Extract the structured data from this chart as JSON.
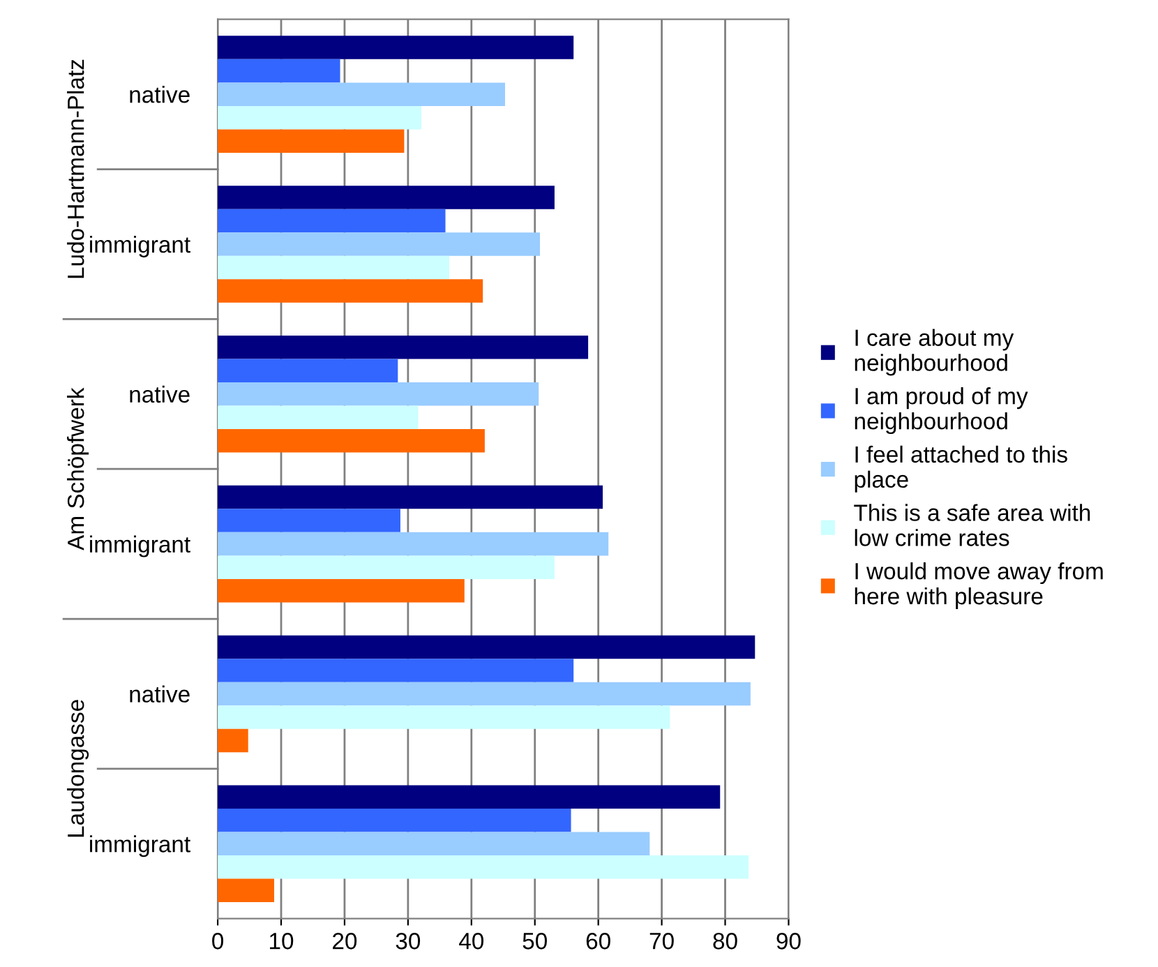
{
  "chart_data": {
    "type": "bar",
    "orientation": "horizontal",
    "categories": [
      "native",
      "immigrant",
      "native",
      "immigrant",
      "native",
      "immigrant"
    ],
    "annotations": [
      "Ludo-Hartmann-Platz",
      "Am Schöpfwerk",
      "Laudongasse"
    ],
    "series": [
      {
        "name": "I care about my\nneighbourhood",
        "color": "#000080",
        "values": [
          56.1,
          53.1,
          58.4,
          60.7,
          84.7,
          79.2
        ]
      },
      {
        "name": "I am proud of my\nneighbourhood",
        "color": "#3366ff",
        "values": [
          19.3,
          35.9,
          28.4,
          28.8,
          56.1,
          55.7
        ]
      },
      {
        "name": "I feel attached to this\nplace",
        "color": "#99ccff",
        "values": [
          45.3,
          50.8,
          50.6,
          61.6,
          84.0,
          68.1
        ]
      },
      {
        "name": "This is a safe area with\nlow crime rates",
        "color": "#ccffff",
        "values": [
          32.1,
          36.5,
          31.6,
          53.1,
          71.3,
          83.7
        ]
      },
      {
        "name": "I would move away from\nhere with pleasure",
        "color": "#ff6600",
        "values": [
          29.4,
          41.8,
          42.1,
          38.9,
          4.8,
          8.9
        ]
      }
    ],
    "xlim": [
      0,
      90
    ],
    "xticks": [
      0,
      10,
      20,
      30,
      40,
      50,
      60,
      70,
      80,
      90
    ],
    "grid": "x",
    "legend": "right"
  }
}
